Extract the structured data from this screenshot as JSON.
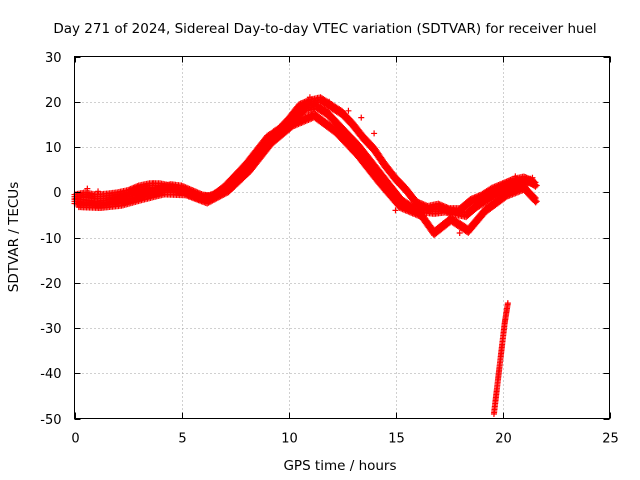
{
  "chart_data": {
    "type": "scatter",
    "title": "Day 271 of 2024, Sidereal Day-to-day VTEC variation (SDTVAR) for receiver huel",
    "xlabel": "GPS time / hours",
    "ylabel": "SDTVAR / TECUs",
    "xlim": [
      0,
      25
    ],
    "ylim": [
      -50,
      30
    ],
    "xticks": [
      0,
      5,
      10,
      15,
      20,
      25
    ],
    "yticks": [
      -50,
      -40,
      -30,
      -20,
      -10,
      0,
      10,
      20,
      30
    ],
    "grid": true,
    "marker": "+",
    "color": "#ff0000",
    "series": [
      {
        "name": "main-band",
        "points": [
          [
            0.0,
            -2.0
          ],
          [
            0.5,
            -2.2
          ],
          [
            1.0,
            -2.5
          ],
          [
            1.5,
            -2.2
          ],
          [
            2.0,
            -1.8
          ],
          [
            2.5,
            -1.0
          ],
          [
            3.0,
            -0.5
          ],
          [
            3.5,
            0.2
          ],
          [
            4.0,
            0.8
          ],
          [
            4.5,
            1.3
          ],
          [
            5.0,
            1.0
          ],
          [
            5.5,
            0.0
          ],
          [
            6.0,
            -1.0
          ],
          [
            6.3,
            -1.2
          ],
          [
            6.8,
            0.0
          ],
          [
            7.3,
            2.0
          ],
          [
            7.8,
            4.5
          ],
          [
            8.3,
            7.0
          ],
          [
            8.8,
            10.0
          ],
          [
            9.3,
            13.0
          ],
          [
            9.8,
            14.5
          ],
          [
            10.3,
            16.5
          ],
          [
            10.8,
            18.5
          ],
          [
            11.3,
            19.0
          ],
          [
            11.8,
            17.5
          ],
          [
            12.3,
            15.0
          ],
          [
            12.8,
            12.5
          ],
          [
            13.3,
            10.0
          ],
          [
            13.8,
            7.0
          ],
          [
            14.3,
            4.0
          ],
          [
            14.8,
            1.0
          ],
          [
            15.3,
            -2.0
          ],
          [
            15.8,
            -3.5
          ],
          [
            16.3,
            -4.0
          ],
          [
            16.8,
            -4.3
          ],
          [
            17.3,
            -4.0
          ],
          [
            17.8,
            -4.5
          ],
          [
            18.3,
            -5.0
          ],
          [
            18.8,
            -3.0
          ],
          [
            19.3,
            -1.5
          ],
          [
            19.8,
            0.0
          ],
          [
            20.3,
            0.8
          ],
          [
            20.8,
            2.0
          ],
          [
            21.3,
            2.5
          ],
          [
            21.6,
            1.5
          ]
        ]
      },
      {
        "name": "upper-band",
        "points": [
          [
            0.0,
            -1.0
          ],
          [
            0.5,
            -0.5
          ],
          [
            1.0,
            -1.0
          ],
          [
            1.5,
            -0.8
          ],
          [
            2.0,
            -0.5
          ],
          [
            2.5,
            0.0
          ],
          [
            3.0,
            1.0
          ],
          [
            3.5,
            1.5
          ],
          [
            4.0,
            1.5
          ],
          [
            4.5,
            1.0
          ],
          [
            5.0,
            0.5
          ],
          [
            5.5,
            -0.5
          ],
          [
            6.0,
            -1.5
          ],
          [
            6.5,
            -0.8
          ],
          [
            7.0,
            1.0
          ],
          [
            7.5,
            3.5
          ],
          [
            8.0,
            6.0
          ],
          [
            8.5,
            9.0
          ],
          [
            9.0,
            12.0
          ],
          [
            9.5,
            13.5
          ],
          [
            10.0,
            16.0
          ],
          [
            10.5,
            19.0
          ],
          [
            11.0,
            20.0
          ],
          [
            11.5,
            20.5
          ],
          [
            12.0,
            19.0
          ],
          [
            12.5,
            17.5
          ],
          [
            13.0,
            15.0
          ],
          [
            13.5,
            12.0
          ],
          [
            14.0,
            9.5
          ],
          [
            14.5,
            6.0
          ],
          [
            15.0,
            3.0
          ],
          [
            15.5,
            0.5
          ],
          [
            16.0,
            -2.5
          ],
          [
            16.5,
            -3.5
          ],
          [
            17.0,
            -3.0
          ],
          [
            17.5,
            -4.0
          ],
          [
            18.0,
            -4.0
          ],
          [
            18.5,
            -2.0
          ],
          [
            19.0,
            -1.0
          ],
          [
            19.5,
            0.5
          ],
          [
            20.0,
            1.5
          ],
          [
            20.5,
            2.5
          ],
          [
            21.0,
            3.0
          ],
          [
            21.5,
            2.0
          ]
        ]
      },
      {
        "name": "lower-band",
        "points": [
          [
            0.2,
            -2.8
          ],
          [
            1.2,
            -3.0
          ],
          [
            2.2,
            -2.5
          ],
          [
            3.2,
            -1.2
          ],
          [
            4.2,
            0.0
          ],
          [
            5.2,
            -0.2
          ],
          [
            6.2,
            -2.0
          ],
          [
            7.2,
            0.5
          ],
          [
            8.2,
            5.0
          ],
          [
            9.2,
            11.0
          ],
          [
            10.2,
            15.0
          ],
          [
            11.2,
            17.0
          ],
          [
            12.2,
            13.5
          ],
          [
            13.2,
            8.5
          ],
          [
            14.2,
            2.5
          ],
          [
            15.2,
            -3.0
          ],
          [
            16.2,
            -5.0
          ],
          [
            16.8,
            -9.0
          ],
          [
            17.6,
            -6.0
          ],
          [
            18.4,
            -8.5
          ],
          [
            19.2,
            -4.0
          ],
          [
            20.2,
            -0.5
          ],
          [
            21.0,
            1.0
          ],
          [
            21.6,
            -2.0
          ]
        ]
      },
      {
        "name": "sparse-points",
        "points": [
          [
            0.6,
            0.8
          ],
          [
            1.1,
            0.2
          ],
          [
            3.7,
            2.0
          ],
          [
            9.7,
            15.0
          ],
          [
            11.0,
            21.0
          ],
          [
            11.9,
            20.0
          ],
          [
            12.8,
            18.0
          ],
          [
            13.4,
            16.5
          ],
          [
            14.0,
            13.0
          ],
          [
            13.0,
            9.0
          ],
          [
            15.0,
            -4.0
          ],
          [
            17.2,
            -7.0
          ],
          [
            18.0,
            -9.0
          ],
          [
            20.6,
            3.5
          ],
          [
            21.4,
            3.2
          ]
        ]
      },
      {
        "name": "descending-tail",
        "points": [
          [
            19.6,
            -49.0
          ],
          [
            19.65,
            -47.0
          ],
          [
            19.7,
            -45.0
          ],
          [
            19.75,
            -43.0
          ],
          [
            19.8,
            -41.0
          ],
          [
            19.85,
            -39.0
          ],
          [
            19.9,
            -37.0
          ],
          [
            19.95,
            -35.0
          ],
          [
            20.0,
            -33.0
          ],
          [
            20.05,
            -31.0
          ],
          [
            20.1,
            -29.0
          ],
          [
            20.15,
            -27.5
          ],
          [
            20.2,
            -26.0
          ],
          [
            20.25,
            -24.5
          ]
        ]
      }
    ]
  }
}
